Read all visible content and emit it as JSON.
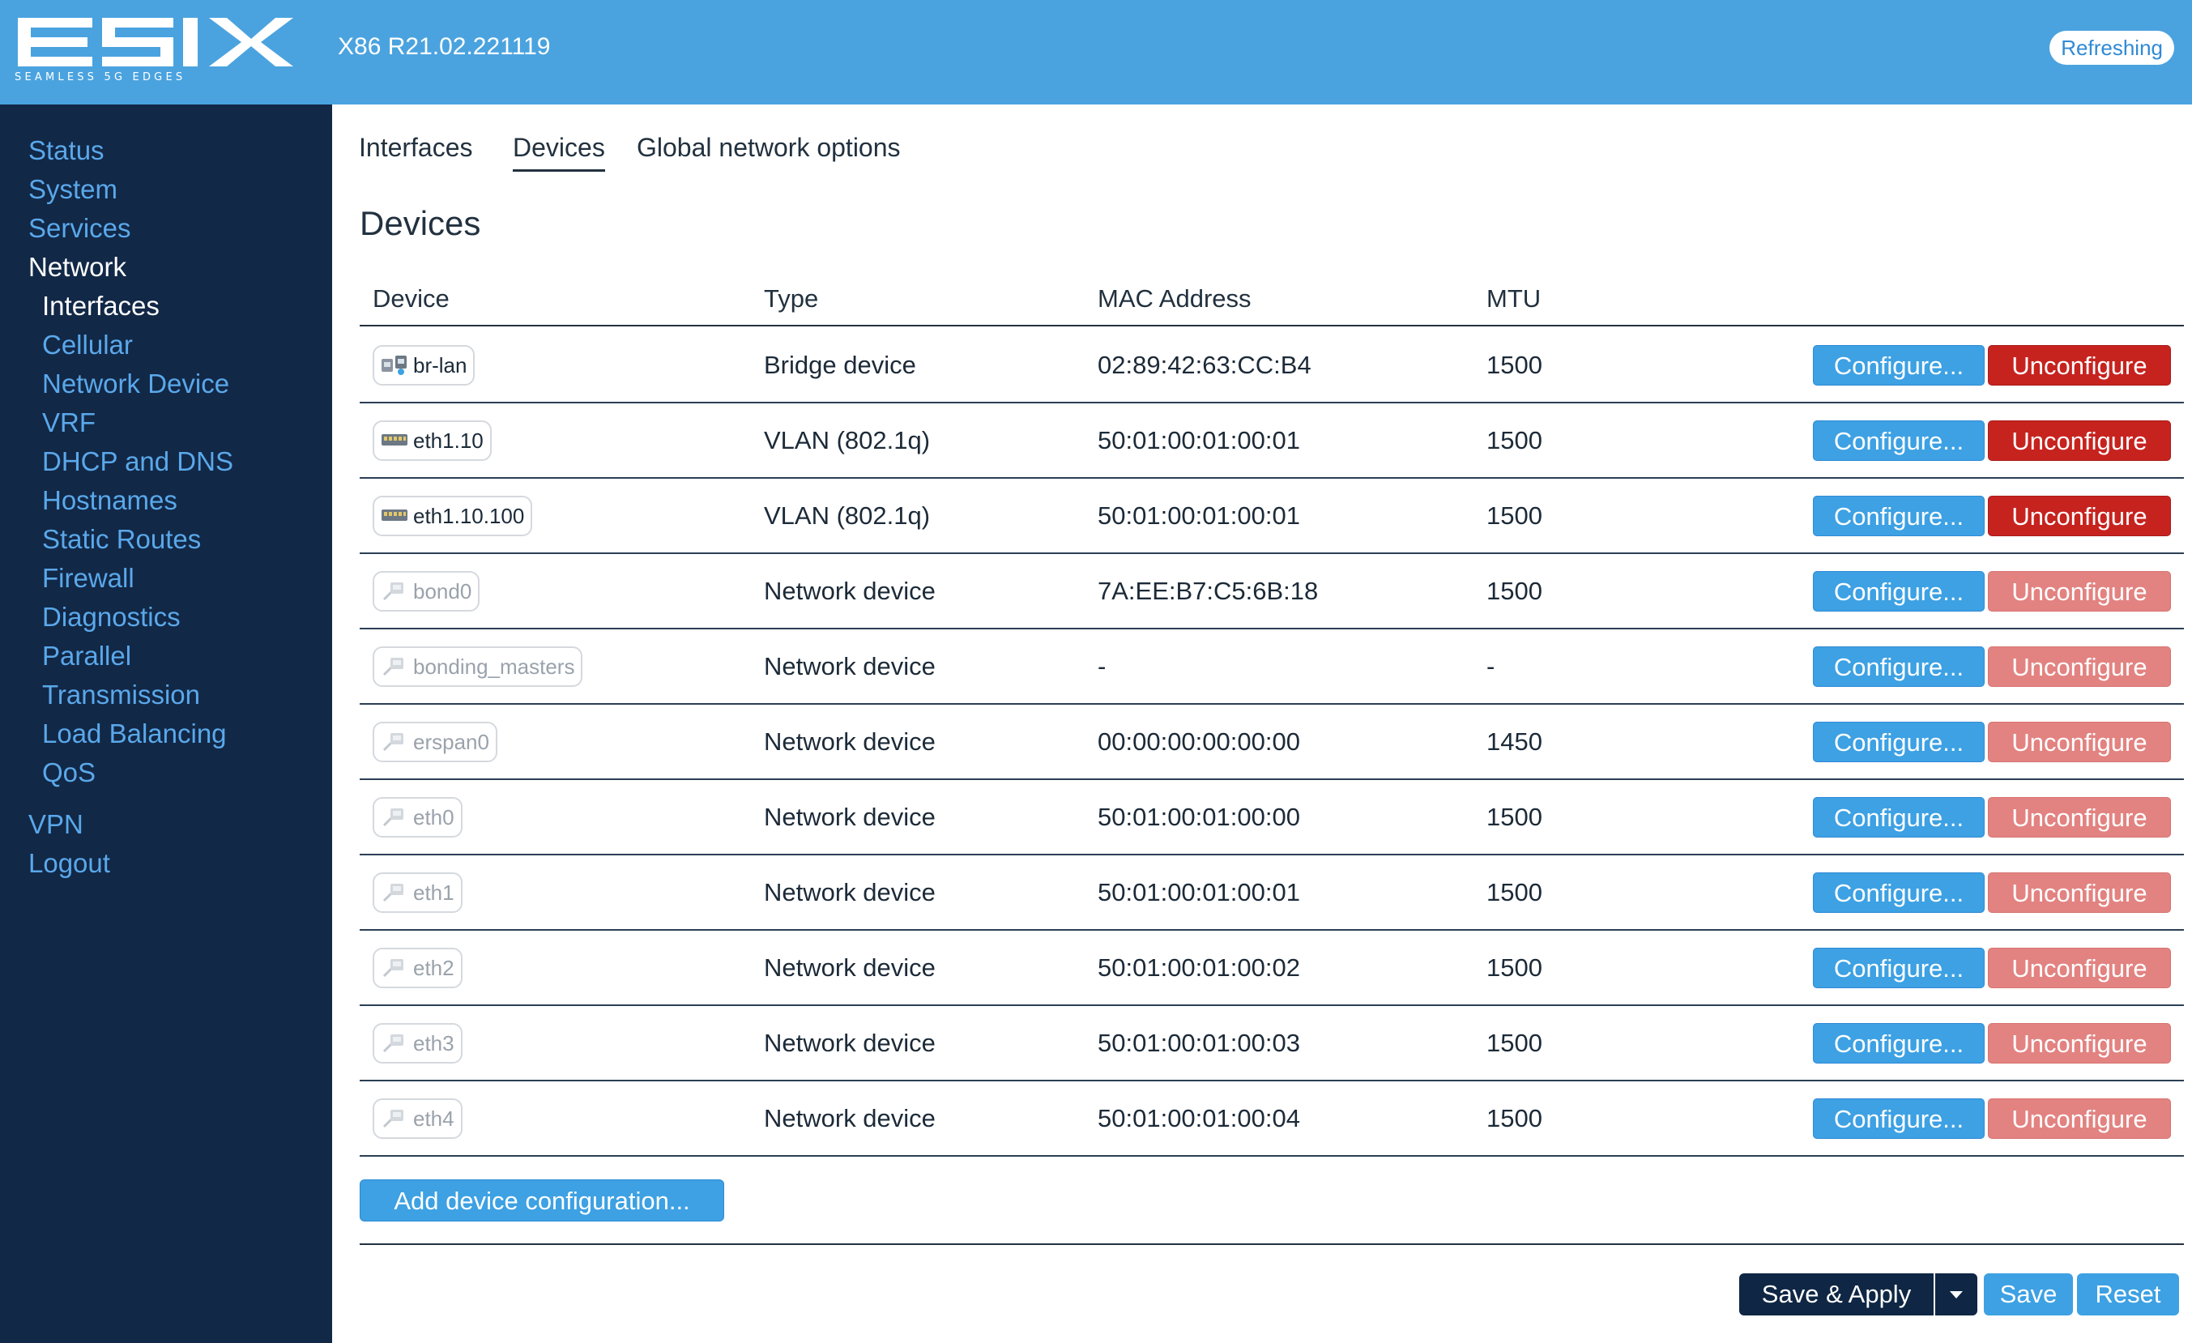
{
  "header": {
    "logo_text": "ESIX",
    "logo_tagline": "SEAMLESS 5G EDGES",
    "version": "X86 R21.02.221119",
    "refreshing": "Refreshing"
  },
  "sidebar": {
    "items": [
      {
        "label": "Status"
      },
      {
        "label": "System"
      },
      {
        "label": "Services"
      },
      {
        "label": "Network"
      }
    ],
    "subitems": [
      {
        "label": "Interfaces"
      },
      {
        "label": "Cellular"
      },
      {
        "label": "Network Device"
      },
      {
        "label": "VRF"
      },
      {
        "label": "DHCP and DNS"
      },
      {
        "label": "Hostnames"
      },
      {
        "label": "Static Routes"
      },
      {
        "label": "Firewall"
      },
      {
        "label": "Diagnostics"
      },
      {
        "label": "Parallel"
      },
      {
        "label": "Transmission"
      },
      {
        "label": "Load Balancing"
      },
      {
        "label": "QoS"
      }
    ],
    "bottom": [
      {
        "label": "VPN"
      },
      {
        "label": "Logout"
      }
    ]
  },
  "tabs": [
    {
      "label": "Interfaces"
    },
    {
      "label": "Devices"
    },
    {
      "label": "Global network options"
    }
  ],
  "page_title": "Devices",
  "table": {
    "headers": [
      "Device",
      "Type",
      "MAC Address",
      "MTU"
    ],
    "rows": [
      {
        "device": "br-lan",
        "icon": "bridge-icon",
        "type": "Bridge device",
        "mac": "02:89:42:63:CC:B4",
        "mtu": "1500",
        "configure": "Configure...",
        "unconfigure": "Unconfigure"
      },
      {
        "device": "eth1.10",
        "icon": "vlan-icon",
        "type": "VLAN (802.1q)",
        "mac": "50:01:00:01:00:01",
        "mtu": "1500",
        "configure": "Configure...",
        "unconfigure": "Unconfigure"
      },
      {
        "device": "eth1.10.100",
        "icon": "vlan-icon",
        "type": "VLAN (802.1q)",
        "mac": "50:01:00:01:00:01",
        "mtu": "1500",
        "configure": "Configure...",
        "unconfigure": "Unconfigure"
      },
      {
        "device": "bond0",
        "icon": "ethernet-icon",
        "type": "Network device",
        "mac": "7A:EE:B7:C5:6B:18",
        "mtu": "1500",
        "configure": "Configure...",
        "unconfigure": "Unconfigure"
      },
      {
        "device": "bonding_masters",
        "icon": "ethernet-icon",
        "type": "Network device",
        "mac": "-",
        "mtu": "-",
        "configure": "Configure...",
        "unconfigure": "Unconfigure"
      },
      {
        "device": "erspan0",
        "icon": "ethernet-icon",
        "type": "Network device",
        "mac": "00:00:00:00:00:00",
        "mtu": "1450",
        "configure": "Configure...",
        "unconfigure": "Unconfigure"
      },
      {
        "device": "eth0",
        "icon": "ethernet-icon",
        "type": "Network device",
        "mac": "50:01:00:01:00:00",
        "mtu": "1500",
        "configure": "Configure...",
        "unconfigure": "Unconfigure"
      },
      {
        "device": "eth1",
        "icon": "ethernet-icon",
        "type": "Network device",
        "mac": "50:01:00:01:00:01",
        "mtu": "1500",
        "configure": "Configure...",
        "unconfigure": "Unconfigure"
      },
      {
        "device": "eth2",
        "icon": "ethernet-icon",
        "type": "Network device",
        "mac": "50:01:00:01:00:02",
        "mtu": "1500",
        "configure": "Configure...",
        "unconfigure": "Unconfigure"
      },
      {
        "device": "eth3",
        "icon": "ethernet-icon",
        "type": "Network device",
        "mac": "50:01:00:01:00:03",
        "mtu": "1500",
        "configure": "Configure...",
        "unconfigure": "Unconfigure"
      },
      {
        "device": "eth4",
        "icon": "ethernet-icon",
        "type": "Network device",
        "mac": "50:01:00:01:00:04",
        "mtu": "1500",
        "configure": "Configure...",
        "unconfigure": "Unconfigure"
      }
    ]
  },
  "actions": {
    "add_device": "Add device configuration...",
    "save_apply": "Save & Apply",
    "save": "Save",
    "reset": "Reset"
  },
  "colors": {
    "header": "#4aa3df",
    "sidebar": "#122847",
    "primary_button": "#3da1e3",
    "danger_button": "#c6231f",
    "danger_button_disabled": "#e28381"
  }
}
